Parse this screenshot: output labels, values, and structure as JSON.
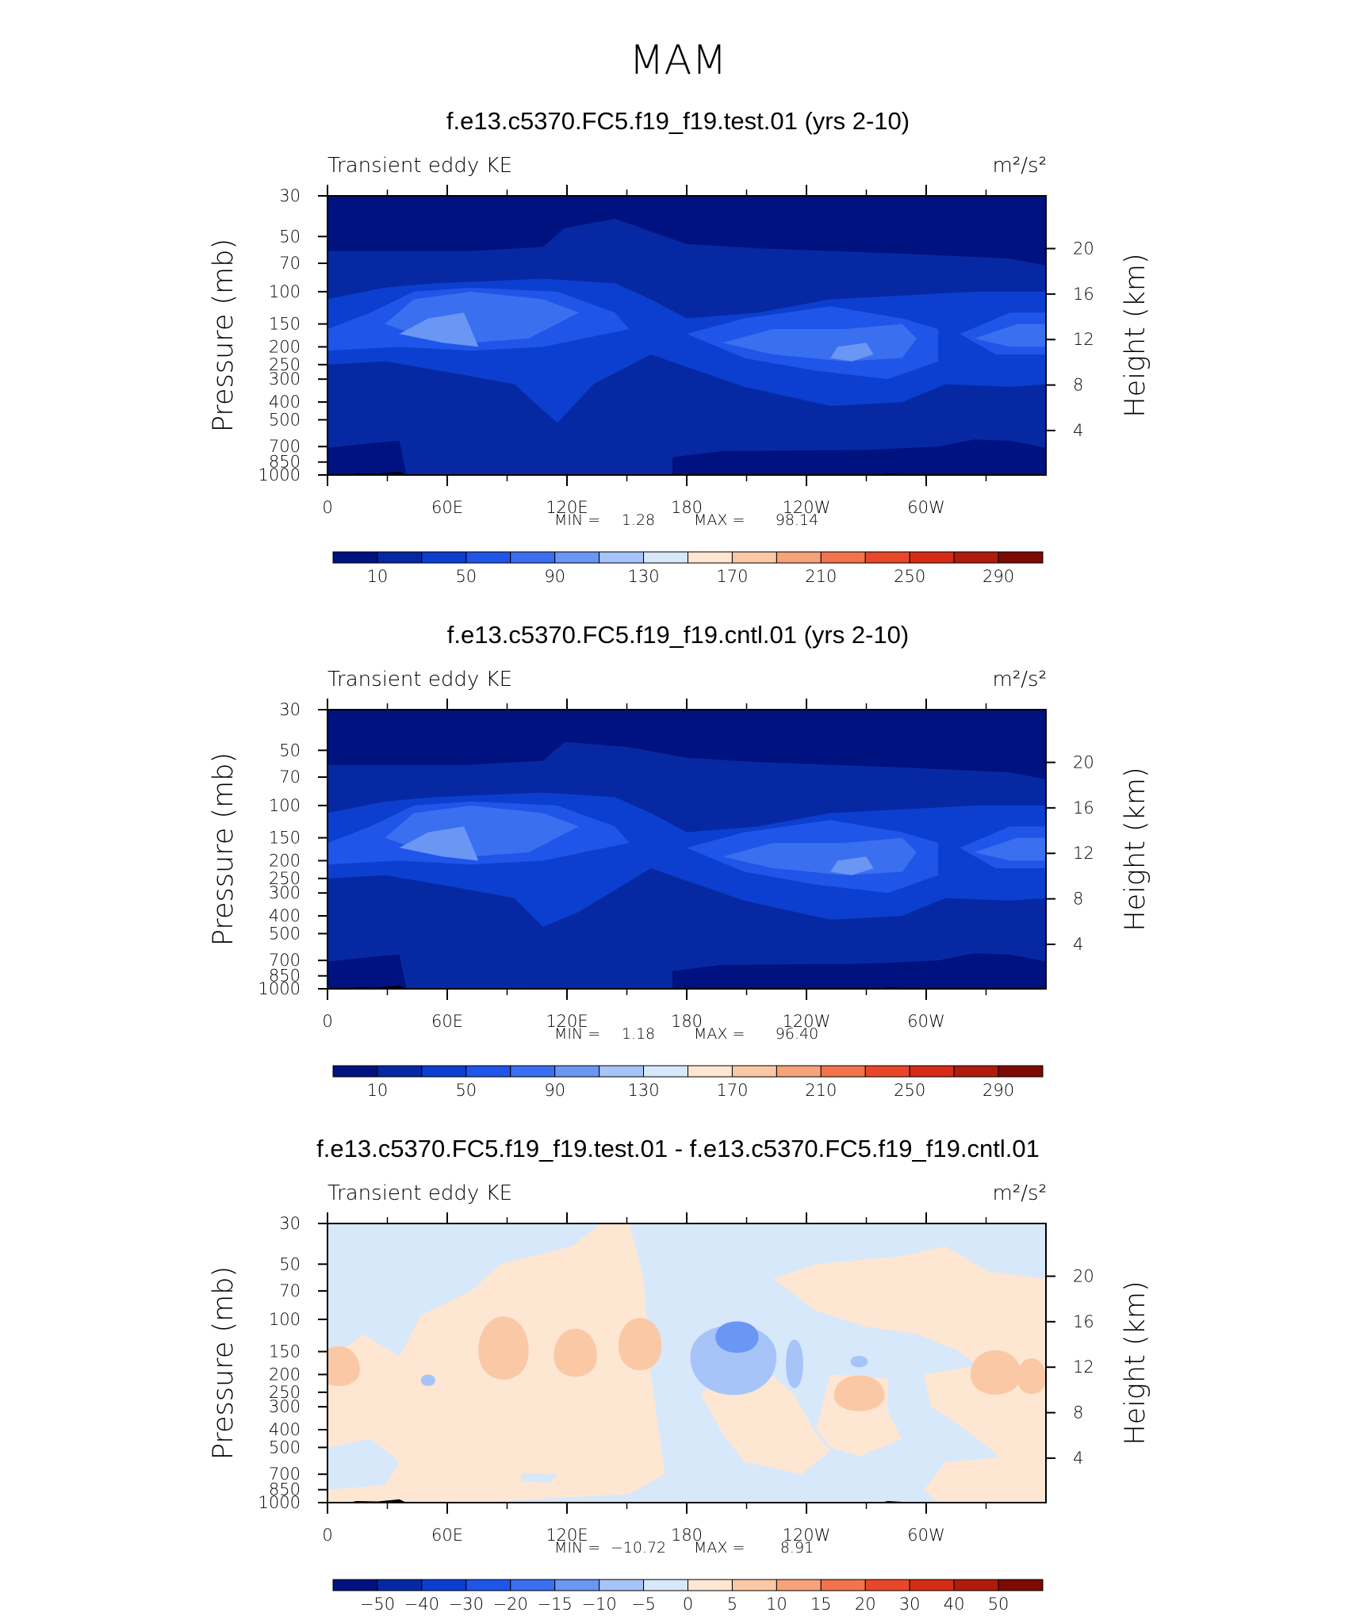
{
  "super_title": "MAM",
  "chart_data": [
    {
      "type": "heatmap",
      "title": "f.e13.c5370.FC5.f19_f19.test.01 (yrs 2-10)",
      "left_label": "Transient eddy KE",
      "units": "m²/s²",
      "ylabel": "Pressure (mb)",
      "ylabel_right": "Height (km)",
      "x_ticks": [
        "0",
        "60E",
        "120E",
        "180",
        "120W",
        "60W"
      ],
      "y_ticks": [
        "30",
        "50",
        "70",
        "100",
        "150",
        "200",
        "250",
        "300",
        "400",
        "500",
        "700",
        "850",
        "1000"
      ],
      "y_ticks_right": [
        "20",
        "16",
        "12",
        "8",
        "4"
      ],
      "stats": {
        "min_label": "MIN =",
        "min": "1.28",
        "max_label": "MAX =",
        "max": "98.14"
      },
      "colorbar": {
        "labels": [
          "10",
          "50",
          "90",
          "130",
          "170",
          "210",
          "250",
          "290"
        ],
        "colors": [
          "#00127f",
          "#0629a3",
          "#0c3fd0",
          "#1f55e8",
          "#3a6ff0",
          "#6a96f4",
          "#a6c4f8",
          "#d7e8fb",
          "#fde6d2",
          "#fbc8a6",
          "#f6a27a",
          "#f1744d",
          "#e9472a",
          "#d62b17",
          "#b01b0c",
          "#7d0a03"
        ]
      },
      "field": "test"
    },
    {
      "type": "heatmap",
      "title": "f.e13.c5370.FC5.f19_f19.cntl.01 (yrs 2-10)",
      "left_label": "Transient eddy KE",
      "units": "m²/s²",
      "ylabel": "Pressure (mb)",
      "ylabel_right": "Height (km)",
      "x_ticks": [
        "0",
        "60E",
        "120E",
        "180",
        "120W",
        "60W"
      ],
      "y_ticks": [
        "30",
        "50",
        "70",
        "100",
        "150",
        "200",
        "250",
        "300",
        "400",
        "500",
        "700",
        "850",
        "1000"
      ],
      "y_ticks_right": [
        "20",
        "16",
        "12",
        "8",
        "4"
      ],
      "stats": {
        "min_label": "MIN =",
        "min": "1.18",
        "max_label": "MAX =",
        "max": "96.40"
      },
      "colorbar": {
        "labels": [
          "10",
          "50",
          "90",
          "130",
          "170",
          "210",
          "250",
          "290"
        ],
        "colors": [
          "#00127f",
          "#0629a3",
          "#0c3fd0",
          "#1f55e8",
          "#3a6ff0",
          "#6a96f4",
          "#a6c4f8",
          "#d7e8fb",
          "#fde6d2",
          "#fbc8a6",
          "#f6a27a",
          "#f1744d",
          "#e9472a",
          "#d62b17",
          "#b01b0c",
          "#7d0a03"
        ]
      },
      "field": "cntl"
    },
    {
      "type": "heatmap",
      "title": "f.e13.c5370.FC5.f19_f19.test.01 - f.e13.c5370.FC5.f19_f19.cntl.01",
      "left_label": "Transient eddy KE",
      "units": "m²/s²",
      "ylabel": "Pressure (mb)",
      "ylabel_right": "Height (km)",
      "x_ticks": [
        "0",
        "60E",
        "120E",
        "180",
        "120W",
        "60W"
      ],
      "y_ticks": [
        "30",
        "50",
        "70",
        "100",
        "150",
        "200",
        "250",
        "300",
        "400",
        "500",
        "700",
        "850",
        "1000"
      ],
      "y_ticks_right": [
        "20",
        "16",
        "12",
        "8",
        "4"
      ],
      "stats": {
        "min_label": "MIN = ",
        "min": "−10.72",
        "max_label": "MAX =",
        "max": "8.91"
      },
      "colorbar": {
        "labels": [
          "−50",
          "−40",
          "−30",
          "−20",
          "−15",
          "−10",
          "−5",
          "0",
          "5",
          "10",
          "15",
          "20",
          "30",
          "40",
          "50"
        ],
        "colors": [
          "#00127f",
          "#0629a3",
          "#0c3fd0",
          "#1f55e8",
          "#3a6ff0",
          "#6a96f4",
          "#a6c4f8",
          "#d7e8fb",
          "#fde6d2",
          "#fbc8a6",
          "#f6a27a",
          "#f1744d",
          "#e9472a",
          "#d62b17",
          "#b01b0c",
          "#7d0a03"
        ]
      },
      "field": "diff"
    }
  ]
}
